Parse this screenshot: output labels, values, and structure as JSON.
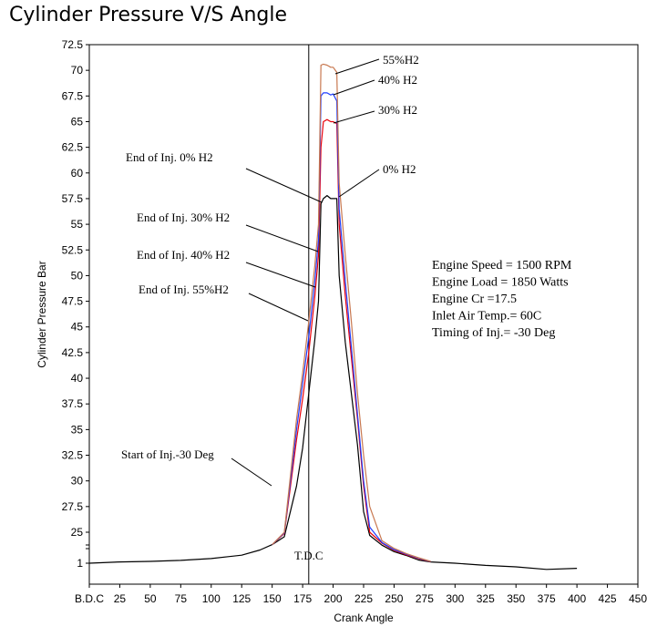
{
  "chart_data": {
    "type": "line",
    "title": "Cylinder Pressure V/S Angle",
    "xlabel": "Crank Angle",
    "ylabel": "Cylinder Pressure Bar",
    "xlim": [
      0,
      450
    ],
    "ylim": [
      0,
      72.5
    ],
    "grid": false,
    "x_tick_labels": [
      "B.D.C",
      "25",
      "50",
      "75",
      "100",
      "125",
      "150",
      "175",
      "200",
      "225",
      "250",
      "275",
      "300",
      "325",
      "350",
      "375",
      "400",
      "425",
      "450"
    ],
    "x_ticks": [
      0,
      25,
      50,
      75,
      100,
      125,
      150,
      175,
      200,
      225,
      250,
      275,
      300,
      325,
      350,
      375,
      400,
      425,
      450
    ],
    "y_tick_labels": [
      "72.5",
      "70",
      "67.5",
      "65",
      "62.5",
      "60",
      "57.5",
      "55",
      "52.5",
      "50",
      "47.5",
      "45",
      "42.5",
      "40",
      "37.5",
      "35",
      "32.5",
      "30",
      "27.5",
      "25",
      "1"
    ],
    "y_ticks": [
      72.5,
      70,
      67.5,
      65,
      62.5,
      60,
      57.5,
      55,
      52.5,
      50,
      47.5,
      45,
      42.5,
      40,
      37.5,
      35,
      32.5,
      30,
      27.5,
      25,
      1
    ],
    "tdc_label": "T.D.C",
    "tdc_x": 180,
    "series": [
      {
        "name": "0% H2",
        "color": "#000000",
        "x": [
          0,
          25,
          50,
          75,
          100,
          125,
          140,
          150,
          160,
          170,
          175,
          180,
          185,
          188,
          190,
          192,
          195,
          198,
          200,
          203,
          205,
          210,
          215,
          220,
          225,
          230,
          240,
          250,
          260,
          270,
          280,
          300,
          325,
          350,
          375,
          400
        ],
        "y": [
          1,
          2,
          2.4,
          3.2,
          4.6,
          7.2,
          11.2,
          15.4,
          21.5,
          29.5,
          33.2,
          38.5,
          43.8,
          47.5,
          57.0,
          57.5,
          57.8,
          57.5,
          57.5,
          57.5,
          50.0,
          43.5,
          38.5,
          33.5,
          27.0,
          22.5,
          15.0,
          10.0,
          7.0,
          3.5,
          2.0,
          1.0,
          0.4,
          0,
          -0.7,
          -0.4
        ]
      },
      {
        "name": "30% H2",
        "color": "#e8000b",
        "x": [
          150,
          160,
          170,
          175,
          180,
          185,
          188,
          190,
          192,
          195,
          198,
          200,
          203,
          205,
          210,
          215,
          220,
          225,
          230,
          240,
          250,
          260,
          270,
          280
        ],
        "y": [
          15.4,
          24.0,
          34.0,
          38.0,
          42.5,
          48.0,
          52.0,
          62.5,
          65.0,
          65.2,
          65.0,
          65.0,
          64.8,
          55.0,
          48.0,
          42.0,
          36.0,
          29.5,
          25.0,
          16.5,
          11.0,
          7.5,
          4.5,
          2.2
        ]
      },
      {
        "name": "40% H2",
        "color": "#1f3cff",
        "x": [
          150,
          160,
          170,
          175,
          180,
          185,
          188,
          190,
          192,
          195,
          198,
          200,
          203,
          205,
          210,
          215,
          220,
          225,
          230,
          240,
          250,
          260,
          270,
          280
        ],
        "y": [
          15.4,
          24.5,
          35.0,
          39.5,
          44.0,
          49.5,
          53.5,
          67.5,
          67.8,
          67.8,
          67.6,
          67.7,
          67.0,
          56.5,
          49.5,
          43.0,
          36.5,
          30.0,
          25.5,
          17.0,
          11.5,
          8.0,
          4.8,
          2.3
        ]
      },
      {
        "name": "55%H2",
        "color": "#c87850",
        "x": [
          150,
          160,
          170,
          175,
          180,
          185,
          188,
          190,
          192,
          195,
          198,
          200,
          203,
          205,
          210,
          215,
          220,
          225,
          230,
          240,
          250,
          260,
          270,
          280
        ],
        "y": [
          15.4,
          25.0,
          36.0,
          40.5,
          45.5,
          51.0,
          55.0,
          70.5,
          70.6,
          70.5,
          70.3,
          70.3,
          69.8,
          59.0,
          52.0,
          45.5,
          38.5,
          32.5,
          27.5,
          18.5,
          12.5,
          8.5,
          5.2,
          2.4
        ]
      }
    ],
    "annotations": [
      {
        "text": "55%H2"
      },
      {
        "text": "40% H2"
      },
      {
        "text": "30% H2"
      },
      {
        "text": "0% H2"
      },
      {
        "text": "End of Inj. 0% H2"
      },
      {
        "text": "End of Inj. 30% H2"
      },
      {
        "text": "End of Inj. 40% H2"
      },
      {
        "text": "End of Inj. 55%H2"
      },
      {
        "text": "Start of Inj.-30 Deg"
      }
    ],
    "info_lines": [
      "Engine Speed = 1500 RPM",
      "Engine Load = 1850 Watts",
      "Engine Cr =17.5",
      "Inlet Air Temp.= 60C",
      "Timing of Inj.= -30 Deg"
    ]
  }
}
